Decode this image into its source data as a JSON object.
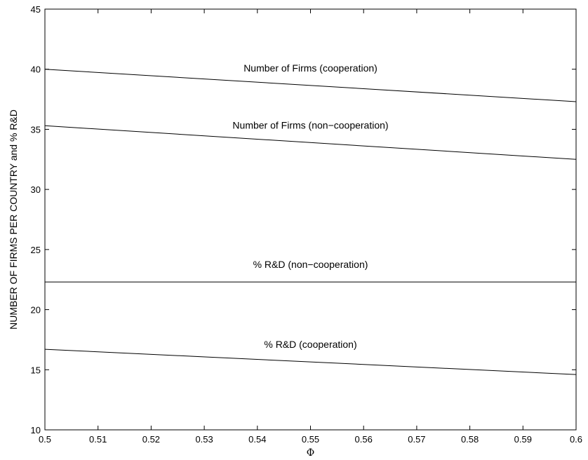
{
  "chart_data": {
    "type": "line",
    "title": "",
    "xlabel": "Φ",
    "ylabel": "NUMBER OF FIRMS PER COUNTRY and % R&D",
    "xlim": [
      0.5,
      0.6
    ],
    "ylim": [
      10,
      45
    ],
    "xticks": [
      "0.5",
      "0.51",
      "0.52",
      "0.53",
      "0.54",
      "0.55",
      "0.56",
      "0.57",
      "0.58",
      "0.59",
      "0.6"
    ],
    "yticks": [
      "10",
      "15",
      "20",
      "25",
      "30",
      "35",
      "40",
      "45"
    ],
    "grid": false,
    "series": [
      {
        "name": "Number of Firms (cooperation)",
        "x": [
          0.5,
          0.6
        ],
        "y": [
          40.0,
          37.3
        ]
      },
      {
        "name": "Number of Firms (non−cooperation)",
        "x": [
          0.5,
          0.6
        ],
        "y": [
          35.3,
          32.5
        ]
      },
      {
        "name": "% R&D (non−cooperation)",
        "x": [
          0.5,
          0.6
        ],
        "y": [
          22.3,
          22.3
        ]
      },
      {
        "name": "% R&D (cooperation)",
        "x": [
          0.5,
          0.6
        ],
        "y": [
          16.7,
          14.6
        ]
      }
    ]
  }
}
